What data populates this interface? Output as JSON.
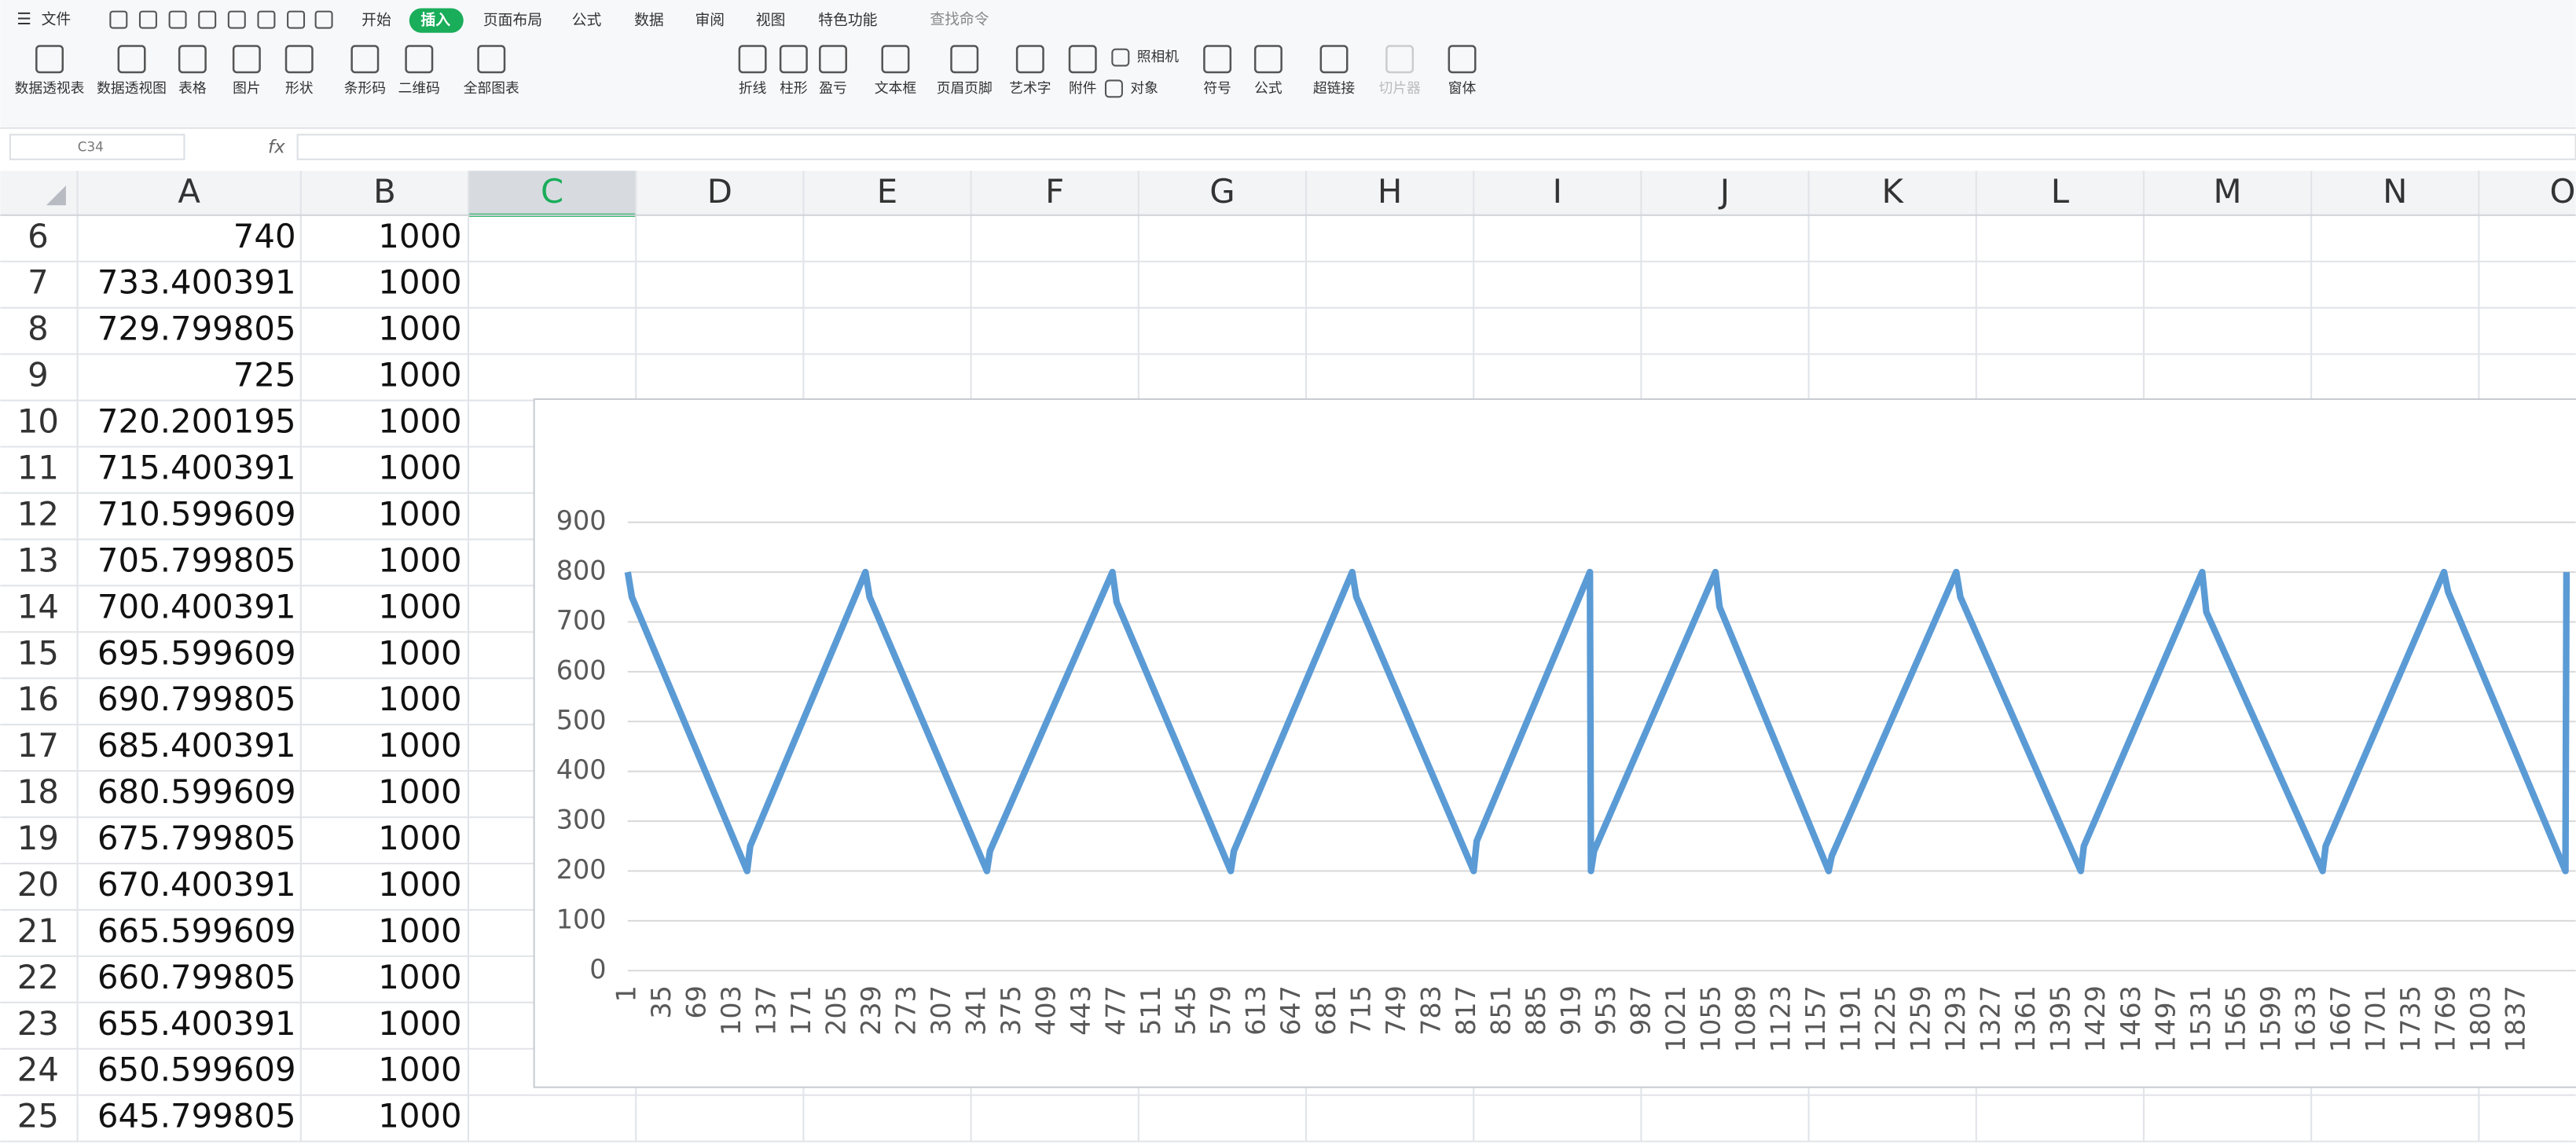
{
  "menu": {
    "file": "文件",
    "tabs": [
      "开始",
      "插入",
      "页面布局",
      "公式",
      "数据",
      "审阅",
      "视图",
      "特色功能"
    ],
    "search": "查找命令"
  },
  "ribbon": [
    "数据透视表",
    "数据透视图",
    "表格",
    "图片",
    "形状",
    "条形码",
    "二维码",
    "全部图表",
    "折线",
    "柱形",
    "盈亏",
    "文本框",
    "页眉页脚",
    "艺术字",
    "附件",
    "照相机",
    "对象",
    "符号",
    "公式",
    "超链接",
    "切片器",
    "窗体"
  ],
  "formula_bar": {
    "name_box": "C34",
    "fx": "fx"
  },
  "sheet": {
    "columns": [
      "A",
      "B",
      "C",
      "D",
      "E",
      "F",
      "G",
      "H",
      "I",
      "J",
      "K",
      "L",
      "M",
      "N",
      "O"
    ],
    "rows": [
      [
        6,
        740,
        1000
      ],
      [
        7,
        733.400391,
        1000
      ],
      [
        8,
        729.799805,
        1000
      ],
      [
        9,
        725,
        1000
      ],
      [
        10,
        720.200195,
        1000
      ],
      [
        11,
        715.400391,
        1000
      ],
      [
        12,
        710.599609,
        1000
      ],
      [
        13,
        705.799805,
        1000
      ],
      [
        14,
        700.400391,
        1000
      ],
      [
        15,
        695.599609,
        1000
      ],
      [
        16,
        690.799805,
        1000
      ],
      [
        17,
        685.400391,
        1000
      ],
      [
        18,
        680.599609,
        1000
      ],
      [
        19,
        675.799805,
        1000
      ],
      [
        20,
        670.400391,
        1000
      ],
      [
        21,
        665.599609,
        1000
      ],
      [
        22,
        660.799805,
        1000
      ],
      [
        23,
        655.400391,
        1000
      ],
      [
        24,
        650.599609,
        1000
      ],
      [
        25,
        645.799805,
        1000
      ]
    ]
  },
  "chart_data": {
    "type": "line",
    "color": "#5b9bd5",
    "grid": true,
    "x": [
      1,
      5,
      117,
      120,
      232,
      236,
      350,
      353,
      472,
      476,
      587,
      590,
      705,
      709,
      823,
      826,
      936,
      937,
      940,
      1058,
      1062,
      1168,
      1171,
      1292,
      1296,
      1413,
      1416,
      1531,
      1535,
      1648,
      1651,
      1766,
      1770,
      1884,
      1885
    ],
    "values": [
      800,
      750,
      200,
      250,
      800,
      750,
      200,
      240,
      800,
      740,
      200,
      240,
      800,
      750,
      200,
      260,
      800,
      200,
      240,
      800,
      730,
      200,
      230,
      800,
      750,
      200,
      250,
      800,
      720,
      200,
      250,
      800,
      760,
      200,
      800
    ],
    "xlim": [
      0,
      1890
    ],
    "xticks": [
      1,
      35,
      69,
      103,
      137,
      171,
      205,
      239,
      273,
      307,
      341,
      375,
      409,
      443,
      477,
      511,
      545,
      579,
      613,
      647,
      681,
      715,
      749,
      783,
      817,
      851,
      885,
      919,
      953,
      987,
      1021,
      1055,
      1089,
      1123,
      1157,
      1191,
      1225,
      1259,
      1293,
      1327,
      1361,
      1395,
      1429,
      1463,
      1497,
      1531,
      1565,
      1599,
      1633,
      1667,
      1701,
      1735,
      1769,
      1803,
      1837
    ],
    "ylim": [
      0,
      900
    ],
    "yticks": [
      0,
      100,
      200,
      300,
      400,
      500,
      600,
      700,
      800,
      900
    ]
  }
}
